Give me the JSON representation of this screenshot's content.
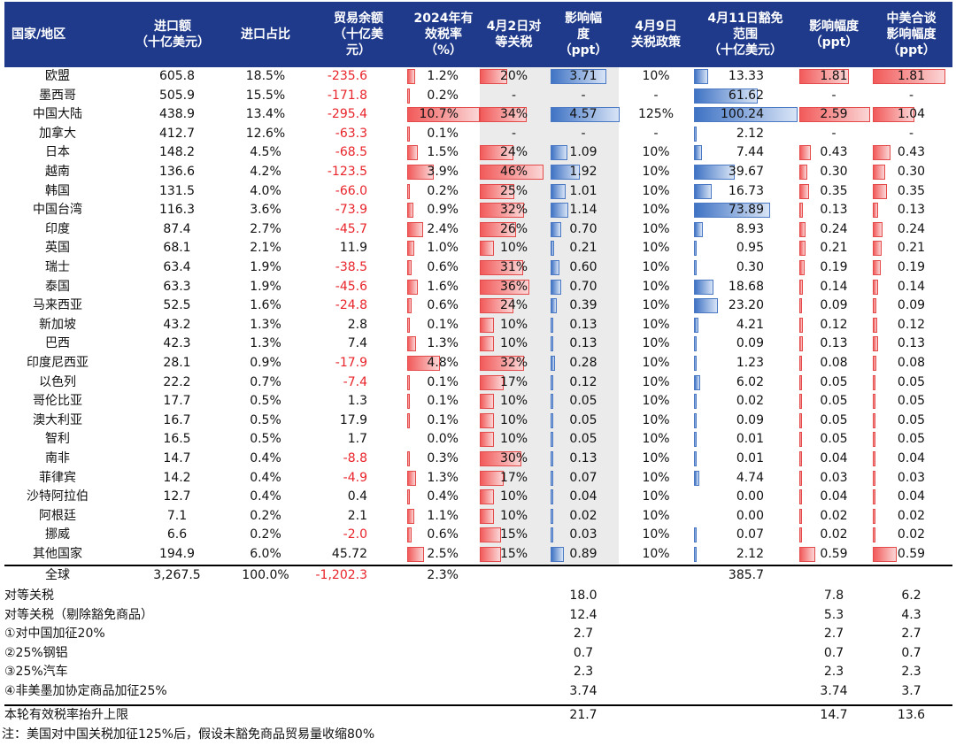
{
  "header": {
    "country": "国家/地区",
    "imports": "进口额\n（十亿美元）",
    "share": "进口占比",
    "balance": "贸易余额\n（十亿美\n元）",
    "eff_rate": "2024年有\n效税率\n（%）",
    "apr2": "4月2日对\n等关税",
    "impact1": "影响幅\n度\n（ppt）",
    "apr9": "4月9日\n关税政策",
    "apr11": "4月11日豁免\n范围\n（十亿美元）",
    "impact2": "影响幅度\n（ppt）",
    "impact3": "中美合谈\n影响幅度\n（ppt）"
  },
  "rows": [
    {
      "country": "欧盟",
      "imports": "605.8",
      "share": "18.5%",
      "balance": "-235.6",
      "eff_rate": "1.2%",
      "eff_v": 1.2,
      "apr2": "20%",
      "apr2_v": 20,
      "impact1": "3.71",
      "impact1_v": 3.71,
      "apr9": "10%",
      "apr11": "13.33",
      "apr11_v": 13.33,
      "impact2": "1.81",
      "impact2_v": 1.81,
      "impact3": "1.81",
      "impact3_v": 1.81
    },
    {
      "country": "墨西哥",
      "imports": "505.9",
      "share": "15.5%",
      "balance": "-171.8",
      "eff_rate": "0.2%",
      "eff_v": 0.2,
      "apr2": "-",
      "apr2_v": 0,
      "impact1": "-",
      "impact1_v": 0,
      "apr9": "-",
      "apr11": "61.62",
      "apr11_v": 61.62,
      "impact2": "-",
      "impact2_v": 0,
      "impact3": "-",
      "impact3_v": 0
    },
    {
      "country": "中国大陆",
      "imports": "438.9",
      "share": "13.4%",
      "balance": "-295.4",
      "eff_rate": "10.7%",
      "eff_v": 10.7,
      "apr2": "34%",
      "apr2_v": 34,
      "impact1": "4.57",
      "impact1_v": 4.57,
      "apr9": "125%",
      "apr11": "100.24",
      "apr11_v": 100.24,
      "impact2": "2.59",
      "impact2_v": 2.59,
      "impact3": "1.04",
      "impact3_v": 1.04
    },
    {
      "country": "加拿大",
      "imports": "412.7",
      "share": "12.6%",
      "balance": "-63.3",
      "eff_rate": "0.1%",
      "eff_v": 0.1,
      "apr2": "-",
      "apr2_v": 0,
      "impact1": "-",
      "impact1_v": 0,
      "apr9": "-",
      "apr11": "2.12",
      "apr11_v": 2.12,
      "impact2": "-",
      "impact2_v": 0,
      "impact3": "-",
      "impact3_v": 0
    },
    {
      "country": "日本",
      "imports": "148.2",
      "share": "4.5%",
      "balance": "-68.5",
      "eff_rate": "1.5%",
      "eff_v": 1.5,
      "apr2": "24%",
      "apr2_v": 24,
      "impact1": "1.09",
      "impact1_v": 1.09,
      "apr9": "10%",
      "apr11": "7.44",
      "apr11_v": 7.44,
      "impact2": "0.43",
      "impact2_v": 0.43,
      "impact3": "0.43",
      "impact3_v": 0.43
    },
    {
      "country": "越南",
      "imports": "136.6",
      "share": "4.2%",
      "balance": "-123.5",
      "eff_rate": "3.9%",
      "eff_v": 3.9,
      "apr2": "46%",
      "apr2_v": 46,
      "impact1": "1.92",
      "impact1_v": 1.92,
      "apr9": "10%",
      "apr11": "39.67",
      "apr11_v": 39.67,
      "impact2": "0.30",
      "impact2_v": 0.3,
      "impact3": "0.30",
      "impact3_v": 0.3
    },
    {
      "country": "韩国",
      "imports": "131.5",
      "share": "4.0%",
      "balance": "-66.0",
      "eff_rate": "0.2%",
      "eff_v": 0.2,
      "apr2": "25%",
      "apr2_v": 25,
      "impact1": "1.01",
      "impact1_v": 1.01,
      "apr9": "10%",
      "apr11": "16.73",
      "apr11_v": 16.73,
      "impact2": "0.35",
      "impact2_v": 0.35,
      "impact3": "0.35",
      "impact3_v": 0.35
    },
    {
      "country": "中国台湾",
      "imports": "116.3",
      "share": "3.6%",
      "balance": "-73.9",
      "eff_rate": "0.9%",
      "eff_v": 0.9,
      "apr2": "32%",
      "apr2_v": 32,
      "impact1": "1.14",
      "impact1_v": 1.14,
      "apr9": "10%",
      "apr11": "73.89",
      "apr11_v": 73.89,
      "impact2": "0.13",
      "impact2_v": 0.13,
      "impact3": "0.13",
      "impact3_v": 0.13
    },
    {
      "country": "印度",
      "imports": "87.4",
      "share": "2.7%",
      "balance": "-45.7",
      "eff_rate": "2.4%",
      "eff_v": 2.4,
      "apr2": "26%",
      "apr2_v": 26,
      "impact1": "0.70",
      "impact1_v": 0.7,
      "apr9": "10%",
      "apr11": "8.93",
      "apr11_v": 8.93,
      "impact2": "0.24",
      "impact2_v": 0.24,
      "impact3": "0.24",
      "impact3_v": 0.24
    },
    {
      "country": "英国",
      "imports": "68.1",
      "share": "2.1%",
      "balance": "11.9",
      "eff_rate": "1.0%",
      "eff_v": 1.0,
      "apr2": "10%",
      "apr2_v": 10,
      "impact1": "0.21",
      "impact1_v": 0.21,
      "apr9": "10%",
      "apr11": "0.95",
      "apr11_v": 0.95,
      "impact2": "0.21",
      "impact2_v": 0.21,
      "impact3": "0.21",
      "impact3_v": 0.21
    },
    {
      "country": "瑞士",
      "imports": "63.4",
      "share": "1.9%",
      "balance": "-38.5",
      "eff_rate": "0.6%",
      "eff_v": 0.6,
      "apr2": "31%",
      "apr2_v": 31,
      "impact1": "0.60",
      "impact1_v": 0.6,
      "apr9": "10%",
      "apr11": "0.30",
      "apr11_v": 0.3,
      "impact2": "0.19",
      "impact2_v": 0.19,
      "impact3": "0.19",
      "impact3_v": 0.19
    },
    {
      "country": "泰国",
      "imports": "63.3",
      "share": "1.9%",
      "balance": "-45.6",
      "eff_rate": "1.6%",
      "eff_v": 1.6,
      "apr2": "36%",
      "apr2_v": 36,
      "impact1": "0.70",
      "impact1_v": 0.7,
      "apr9": "10%",
      "apr11": "18.68",
      "apr11_v": 18.68,
      "impact2": "0.14",
      "impact2_v": 0.14,
      "impact3": "0.14",
      "impact3_v": 0.14
    },
    {
      "country": "马来西亚",
      "imports": "52.5",
      "share": "1.6%",
      "balance": "-24.8",
      "eff_rate": "0.6%",
      "eff_v": 0.6,
      "apr2": "24%",
      "apr2_v": 24,
      "impact1": "0.39",
      "impact1_v": 0.39,
      "apr9": "10%",
      "apr11": "23.20",
      "apr11_v": 23.2,
      "impact2": "0.09",
      "impact2_v": 0.09,
      "impact3": "0.09",
      "impact3_v": 0.09
    },
    {
      "country": "新加坡",
      "imports": "43.2",
      "share": "1.3%",
      "balance": "2.8",
      "eff_rate": "0.1%",
      "eff_v": 0.1,
      "apr2": "10%",
      "apr2_v": 10,
      "impact1": "0.13",
      "impact1_v": 0.13,
      "apr9": "10%",
      "apr11": "4.21",
      "apr11_v": 4.21,
      "impact2": "0.12",
      "impact2_v": 0.12,
      "impact3": "0.12",
      "impact3_v": 0.12
    },
    {
      "country": "巴西",
      "imports": "42.3",
      "share": "1.3%",
      "balance": "7.4",
      "eff_rate": "1.3%",
      "eff_v": 1.3,
      "apr2": "10%",
      "apr2_v": 10,
      "impact1": "0.13",
      "impact1_v": 0.13,
      "apr9": "10%",
      "apr11": "0.09",
      "apr11_v": 0.09,
      "impact2": "0.13",
      "impact2_v": 0.13,
      "impact3": "0.13",
      "impact3_v": 0.13
    },
    {
      "country": "印度尼西亚",
      "imports": "28.1",
      "share": "0.9%",
      "balance": "-17.9",
      "eff_rate": "4.8%",
      "eff_v": 4.8,
      "apr2": "32%",
      "apr2_v": 32,
      "impact1": "0.28",
      "impact1_v": 0.28,
      "apr9": "10%",
      "apr11": "1.23",
      "apr11_v": 1.23,
      "impact2": "0.08",
      "impact2_v": 0.08,
      "impact3": "0.08",
      "impact3_v": 0.08
    },
    {
      "country": "以色列",
      "imports": "22.2",
      "share": "0.7%",
      "balance": "-7.4",
      "eff_rate": "0.1%",
      "eff_v": 0.1,
      "apr2": "17%",
      "apr2_v": 17,
      "impact1": "0.12",
      "impact1_v": 0.12,
      "apr9": "10%",
      "apr11": "6.02",
      "apr11_v": 6.02,
      "impact2": "0.05",
      "impact2_v": 0.05,
      "impact3": "0.05",
      "impact3_v": 0.05
    },
    {
      "country": "哥伦比亚",
      "imports": "17.7",
      "share": "0.5%",
      "balance": "1.3",
      "eff_rate": "0.1%",
      "eff_v": 0.1,
      "apr2": "10%",
      "apr2_v": 10,
      "impact1": "0.05",
      "impact1_v": 0.05,
      "apr9": "10%",
      "apr11": "0.02",
      "apr11_v": 0.02,
      "impact2": "0.05",
      "impact2_v": 0.05,
      "impact3": "0.05",
      "impact3_v": 0.05
    },
    {
      "country": "澳大利亚",
      "imports": "16.7",
      "share": "0.5%",
      "balance": "17.9",
      "eff_rate": "0.1%",
      "eff_v": 0.1,
      "apr2": "10%",
      "apr2_v": 10,
      "impact1": "0.05",
      "impact1_v": 0.05,
      "apr9": "10%",
      "apr11": "0.09",
      "apr11_v": 0.09,
      "impact2": "0.05",
      "impact2_v": 0.05,
      "impact3": "0.05",
      "impact3_v": 0.05
    },
    {
      "country": "智利",
      "imports": "16.5",
      "share": "0.5%",
      "balance": "1.7",
      "eff_rate": "0.0%",
      "eff_v": 0.0,
      "apr2": "10%",
      "apr2_v": 10,
      "impact1": "0.05",
      "impact1_v": 0.05,
      "apr9": "10%",
      "apr11": "0.01",
      "apr11_v": 0.01,
      "impact2": "0.05",
      "impact2_v": 0.05,
      "impact3": "0.05",
      "impact3_v": 0.05
    },
    {
      "country": "南非",
      "imports": "14.7",
      "share": "0.4%",
      "balance": "-8.8",
      "eff_rate": "0.3%",
      "eff_v": 0.3,
      "apr2": "30%",
      "apr2_v": 30,
      "impact1": "0.13",
      "impact1_v": 0.13,
      "apr9": "10%",
      "apr11": "0.01",
      "apr11_v": 0.01,
      "impact2": "0.04",
      "impact2_v": 0.04,
      "impact3": "0.04",
      "impact3_v": 0.04
    },
    {
      "country": "菲律宾",
      "imports": "14.2",
      "share": "0.4%",
      "balance": "-4.9",
      "eff_rate": "1.3%",
      "eff_v": 1.3,
      "apr2": "17%",
      "apr2_v": 17,
      "impact1": "0.07",
      "impact1_v": 0.07,
      "apr9": "10%",
      "apr11": "4.74",
      "apr11_v": 4.74,
      "impact2": "0.03",
      "impact2_v": 0.03,
      "impact3": "0.03",
      "impact3_v": 0.03
    },
    {
      "country": "沙特阿拉伯",
      "imports": "12.7",
      "share": "0.4%",
      "balance": "0.4",
      "eff_rate": "0.4%",
      "eff_v": 0.4,
      "apr2": "10%",
      "apr2_v": 10,
      "impact1": "0.04",
      "impact1_v": 0.04,
      "apr9": "10%",
      "apr11": "0.00",
      "apr11_v": 0.0,
      "impact2": "0.04",
      "impact2_v": 0.04,
      "impact3": "0.04",
      "impact3_v": 0.04
    },
    {
      "country": "阿根廷",
      "imports": "7.1",
      "share": "0.2%",
      "balance": "2.1",
      "eff_rate": "1.1%",
      "eff_v": 1.1,
      "apr2": "10%",
      "apr2_v": 10,
      "impact1": "0.02",
      "impact1_v": 0.02,
      "apr9": "10%",
      "apr11": "0.00",
      "apr11_v": 0.0,
      "impact2": "0.02",
      "impact2_v": 0.02,
      "impact3": "0.02",
      "impact3_v": 0.02
    },
    {
      "country": "挪威",
      "imports": "6.6",
      "share": "0.2%",
      "balance": "-2.0",
      "eff_rate": "0.6%",
      "eff_v": 0.6,
      "apr2": "15%",
      "apr2_v": 15,
      "impact1": "0.03",
      "impact1_v": 0.03,
      "apr9": "10%",
      "apr11": "0.07",
      "apr11_v": 0.07,
      "impact2": "0.02",
      "impact2_v": 0.02,
      "impact3": "0.02",
      "impact3_v": 0.02
    },
    {
      "country": "其他国家",
      "imports": "194.9",
      "share": "6.0%",
      "balance": "45.72",
      "eff_rate": "2.5%",
      "eff_v": 2.5,
      "apr2": "15%",
      "apr2_v": 15,
      "impact1": "0.89",
      "impact1_v": 0.89,
      "apr9": "10%",
      "apr11": "2.12",
      "apr11_v": 2.12,
      "impact2": "0.59",
      "impact2_v": 0.59,
      "impact3": "0.59",
      "impact3_v": 0.59
    }
  ],
  "total": {
    "country": "全球",
    "imports": "3,267.5",
    "share": "100.0%",
    "balance": "-1,202.3",
    "eff_rate": "2.3%",
    "apr11": "385.7"
  },
  "summary": [
    {
      "label": "对等关税",
      "impact1": "18.0",
      "impact2": "7.8",
      "impact3": "6.2"
    },
    {
      "label": "对等关税（剔除豁免商品）",
      "impact1": "12.4",
      "impact2": "5.3",
      "impact3": "4.3"
    },
    {
      "label": "①对中国加征20%",
      "impact1": "2.7",
      "impact2": "2.7",
      "impact3": "2.7"
    },
    {
      "label": "②25%钢铝",
      "impact1": "0.7",
      "impact2": "0.7",
      "impact3": "0.7"
    },
    {
      "label": "③25%汽车",
      "impact1": "2.3",
      "impact2": "2.3",
      "impact3": "2.3"
    },
    {
      "label": "④非美墨加协定商品加征25%",
      "impact1": "3.74",
      "impact2": "3.74",
      "impact3": "3.7"
    }
  ],
  "final": {
    "label": "本轮有效税率抬升上限",
    "impact1": "21.7",
    "impact2": "14.7",
    "impact3": "13.6"
  },
  "note": "注：美国对中国关税加征125%后，假设未豁免商品贸易量收缩80%",
  "colors": {
    "header": "#1f3a8a",
    "negative": "#e8232a",
    "bar_red": "#f25a5a",
    "bar_blue": "#3f73c4",
    "shade": "#ebebeb"
  }
}
